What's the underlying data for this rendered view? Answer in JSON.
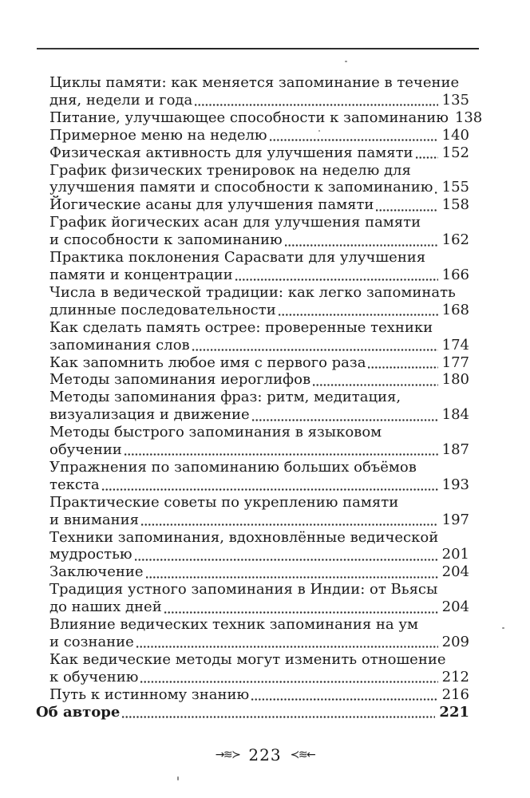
{
  "toc": {
    "entries": [
      {
        "lines": [
          "Циклы памяти: как меняется запоминание в течение",
          "дня, недели и года"
        ],
        "page": "135"
      },
      {
        "lines": [
          "Питание, улучшающее способности к запоминанию"
        ],
        "page": "138"
      },
      {
        "lines": [
          "Примерное меню на неделю"
        ],
        "page": "140"
      },
      {
        "lines": [
          "Физическая активность для улучшения памяти"
        ],
        "page": "152"
      },
      {
        "lines": [
          "График физических тренировок на неделю для",
          "улучшения памяти и способности к запоминанию"
        ],
        "page": "155"
      },
      {
        "lines": [
          "Йогические асаны для улучшения памяти"
        ],
        "page": "158"
      },
      {
        "lines": [
          "График йогических асан для улучшения памяти",
          "и способности к запоминанию"
        ],
        "page": "162"
      },
      {
        "lines": [
          "Практика поклонения Сарасвати для улучшения",
          "памяти и концентрации"
        ],
        "page": "166"
      },
      {
        "lines": [
          "Числа в ведической традиции: как легко запоминать",
          "длинные последовательности"
        ],
        "page": "168"
      },
      {
        "lines": [
          "Как сделать память острее: проверенные техники",
          "запоминания слов"
        ],
        "page": "174"
      },
      {
        "lines": [
          "Как запомнить любое имя с первого раза"
        ],
        "page": "177"
      },
      {
        "lines": [
          "Методы запоминания иероглифов"
        ],
        "page": "180"
      },
      {
        "lines": [
          "Методы запоминания фраз: ритм, медитация,",
          "визуализация и движение"
        ],
        "page": "184"
      },
      {
        "lines": [
          "Методы быстрого запоминания в языковом",
          "обучении"
        ],
        "page": "187"
      },
      {
        "lines": [
          "Упражнения по запоминанию больших объёмов",
          "текста"
        ],
        "page": "193"
      },
      {
        "lines": [
          "Практические советы по укреплению памяти",
          "и внимания"
        ],
        "page": "197"
      },
      {
        "lines": [
          "Техники запоминания, вдохновлённые ведической",
          "мудростью"
        ],
        "page": "201"
      },
      {
        "lines": [
          "Заключение"
        ],
        "page": "204"
      },
      {
        "lines": [
          "Традиция устного запоминания в Индии: от Вьясы",
          "до наших дней"
        ],
        "page": "204"
      },
      {
        "lines": [
          "Влияние ведических техник запоминания на ум",
          "и сознание"
        ],
        "page": "209"
      },
      {
        "lines": [
          "Как ведические методы могут изменить отношение",
          "к обучению"
        ],
        "page": "212"
      },
      {
        "lines": [
          "Путь к истинному знанию"
        ],
        "page": "216"
      },
      {
        "lines": [
          "Об авторе"
        ],
        "page": "221",
        "bold": true,
        "outdent": true
      }
    ]
  },
  "footer": {
    "page_number": "223",
    "ornament_left": "→≋≻",
    "ornament_right": "≺≋←"
  }
}
